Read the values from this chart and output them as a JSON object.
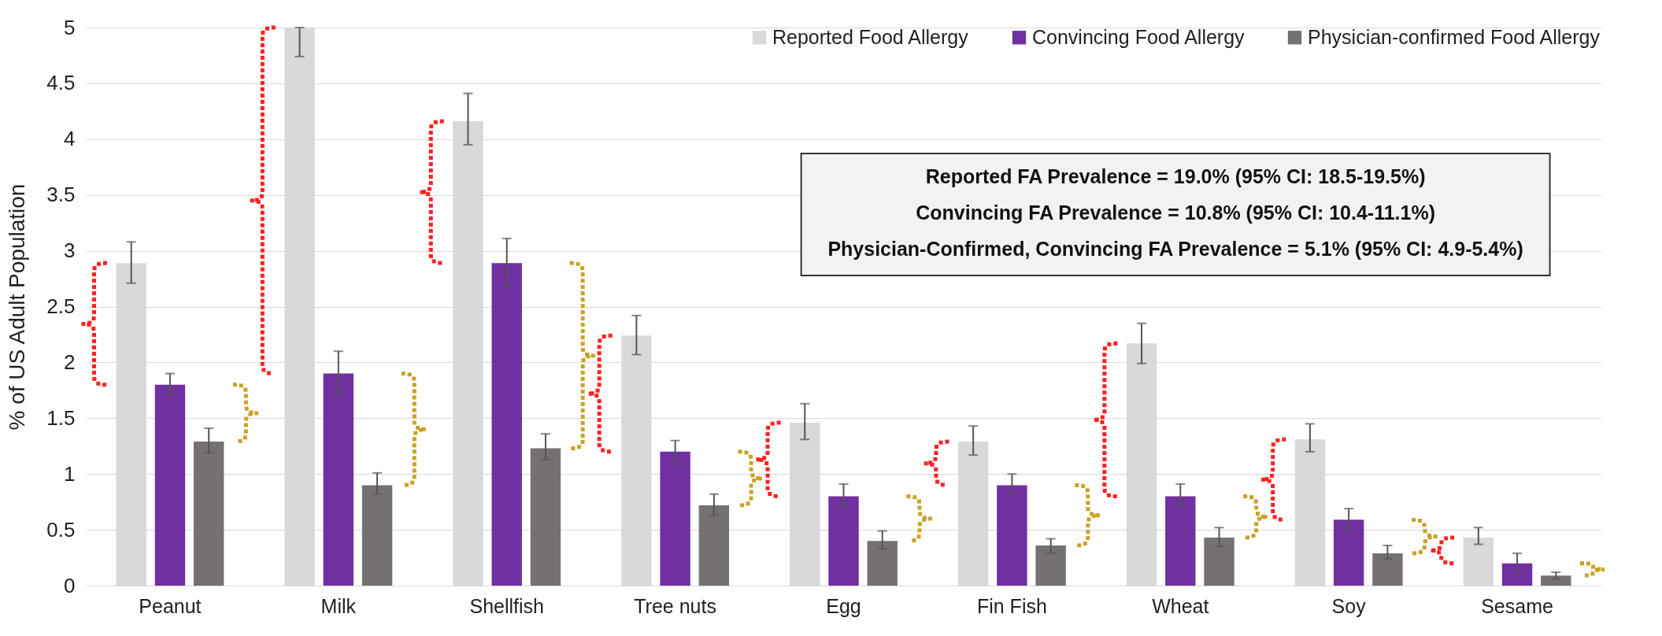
{
  "chart_data": {
    "type": "bar",
    "ylabel": "% of US Adult Population",
    "categories": [
      "Peanut",
      "Milk",
      "Shellfish",
      "Tree nuts",
      "Egg",
      "Fin Fish",
      "Wheat",
      "Soy",
      "Sesame"
    ],
    "series": [
      {
        "name": "Reported Food Allergy",
        "color": "#d9d9d9",
        "values": [
          2.89,
          5.0,
          4.16,
          2.24,
          1.46,
          1.29,
          2.17,
          1.31,
          0.43
        ],
        "errors": [
          [
            2.71,
            3.08
          ],
          [
            4.74,
            5.0
          ],
          [
            3.95,
            4.41
          ],
          [
            2.07,
            2.42
          ],
          [
            1.31,
            1.63
          ],
          [
            1.17,
            1.43
          ],
          [
            1.99,
            2.35
          ],
          [
            1.2,
            1.45
          ],
          [
            0.37,
            0.52
          ]
        ]
      },
      {
        "name": "Convincing Food Allergy",
        "color": "#7030a0",
        "values": [
          1.8,
          1.9,
          2.89,
          1.2,
          0.8,
          0.9,
          0.8,
          0.59,
          0.2
        ],
        "errors": [
          [
            1.71,
            1.9
          ],
          [
            1.71,
            2.1
          ],
          [
            2.68,
            3.11
          ],
          [
            1.09,
            1.3
          ],
          [
            0.71,
            0.91
          ],
          [
            0.82,
            1.0
          ],
          [
            0.71,
            0.91
          ],
          [
            0.49,
            0.69
          ],
          [
            0.09,
            0.29
          ]
        ]
      },
      {
        "name": "Physician-confirmed Food Allergy",
        "color": "#767171",
        "values": [
          1.29,
          0.9,
          1.23,
          0.72,
          0.4,
          0.36,
          0.43,
          0.29,
          0.09
        ],
        "errors": [
          [
            1.19,
            1.41
          ],
          [
            0.82,
            1.01
          ],
          [
            1.13,
            1.36
          ],
          [
            0.63,
            0.82
          ],
          [
            0.33,
            0.49
          ],
          [
            0.29,
            0.42
          ],
          [
            0.35,
            0.52
          ],
          [
            0.24,
            0.36
          ],
          [
            0.06,
            0.12
          ]
        ]
      }
    ],
    "ylim": [
      0,
      5
    ],
    "yticks": [
      0,
      0.5,
      1,
      1.5,
      2,
      2.5,
      3,
      3.5,
      4,
      4.5,
      5
    ],
    "grid": "y",
    "legend": "top right",
    "annotations": [
      "Reported FA Prevalence = 19.0% (95% CI: 18.5-19.5%)",
      "Convincing FA Prevalence = 10.8% (95% CI: 10.4-11.1%)",
      "Physician-Confirmed, Convincing FA Prevalence = 5.1% (95% CI: 4.9-5.4%)"
    ]
  }
}
